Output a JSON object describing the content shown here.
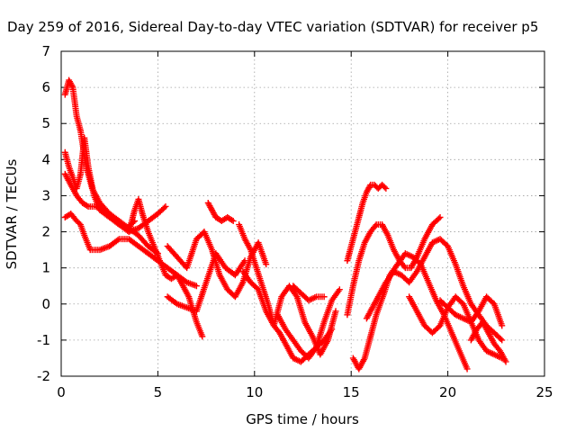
{
  "chart_data": {
    "type": "scatter",
    "title": "Day 259 of 2016, Sidereal Day-to-day VTEC variation (SDTVAR) for receiver p5",
    "xlabel": "GPS time / hours",
    "ylabel": "SDTVAR / TECUs",
    "xlim": [
      0,
      25
    ],
    "ylim": [
      -2,
      7
    ],
    "xticks": [
      0,
      5,
      10,
      15,
      20,
      25
    ],
    "yticks": [
      -2,
      -1,
      0,
      1,
      2,
      3,
      4,
      5,
      6,
      7
    ],
    "xtick_labels": [
      "0",
      "5",
      "10",
      "15",
      "20",
      "25"
    ],
    "ytick_labels": [
      "-2",
      "-1",
      "0",
      "1",
      "2",
      "3",
      "4",
      "5",
      "6",
      "7"
    ],
    "grid": true,
    "marker": "+",
    "color": "#ff0000",
    "tracks": [
      {
        "x": [
          0.2,
          0.4,
          0.6,
          0.8,
          1.0,
          1.3,
          1.6,
          2.0,
          2.5,
          3.0,
          3.5,
          4.0,
          4.5,
          5.0
        ],
        "y": [
          5.8,
          6.2,
          6.0,
          5.2,
          4.8,
          3.8,
          3.2,
          2.8,
          2.5,
          2.3,
          2.1,
          1.9,
          1.6,
          1.4
        ]
      },
      {
        "x": [
          0.2,
          0.4,
          0.6,
          0.8,
          1.0,
          1.2,
          1.4,
          1.7,
          2.0,
          2.5,
          3.0,
          3.5,
          4.0,
          4.5,
          5.0,
          5.4
        ],
        "y": [
          4.2,
          3.8,
          3.5,
          3.2,
          3.6,
          4.6,
          3.8,
          3.0,
          2.6,
          2.4,
          2.2,
          2.0,
          2.1,
          2.3,
          2.5,
          2.7
        ]
      },
      {
        "x": [
          0.2,
          0.5,
          0.8,
          1.0,
          1.2,
          1.5,
          2.0,
          2.5,
          3.0,
          3.5,
          4.0,
          4.5,
          5.0,
          5.5,
          6.0,
          6.5,
          7.0
        ],
        "y": [
          2.4,
          2.5,
          2.3,
          2.2,
          1.9,
          1.5,
          1.5,
          1.6,
          1.8,
          1.8,
          1.6,
          1.4,
          1.2,
          1.0,
          0.8,
          0.6,
          0.5
        ]
      },
      {
        "x": [
          0.2,
          0.5,
          0.8,
          1.1,
          1.4,
          1.8,
          2.2,
          2.6,
          3.0,
          3.4,
          3.8
        ],
        "y": [
          3.6,
          3.3,
          3.0,
          2.8,
          2.7,
          2.7,
          2.6,
          2.4,
          2.2,
          2.1,
          2.3
        ]
      },
      {
        "x": [
          3.5,
          3.8,
          4.0,
          4.2,
          4.5,
          4.8,
          5.1,
          5.4,
          5.7,
          6.0,
          6.3,
          6.6,
          7.0,
          7.3
        ],
        "y": [
          2.0,
          2.6,
          2.9,
          2.5,
          2.0,
          1.6,
          1.2,
          0.8,
          0.7,
          0.8,
          0.5,
          0.2,
          -0.5,
          -0.9
        ]
      },
      {
        "x": [
          5.5,
          6.0,
          6.5,
          7.0,
          7.5,
          8.0,
          8.5,
          9.0,
          9.5
        ],
        "y": [
          0.2,
          0.0,
          -0.1,
          -0.2,
          0.6,
          1.4,
          1.0,
          0.8,
          1.2
        ]
      },
      {
        "x": [
          5.5,
          6.0,
          6.5,
          7.0,
          7.4,
          7.8,
          8.2,
          8.6,
          9.0,
          9.4,
          9.8,
          10.2,
          10.6
        ],
        "y": [
          1.6,
          1.3,
          1.0,
          1.8,
          2.0,
          1.5,
          0.8,
          0.4,
          0.2,
          0.6,
          1.3,
          1.7,
          1.1
        ]
      },
      {
        "x": [
          7.6,
          7.8,
          8.0,
          8.3,
          8.6,
          8.9
        ],
        "y": [
          2.8,
          2.6,
          2.4,
          2.3,
          2.4,
          2.3
        ]
      },
      {
        "x": [
          9.2,
          9.5,
          9.8,
          10.1,
          10.4,
          10.7,
          11.0,
          11.3,
          11.6,
          12.0,
          12.4,
          12.8,
          13.2,
          13.6,
          14.0
        ],
        "y": [
          2.2,
          1.8,
          1.5,
          1.0,
          0.5,
          0.0,
          -0.6,
          -0.8,
          -1.1,
          -1.5,
          -1.6,
          -1.4,
          -1.2,
          -1.0,
          -0.7
        ]
      },
      {
        "x": [
          9.4,
          9.8,
          10.2,
          10.6,
          11.0,
          11.4,
          11.8,
          12.2,
          12.6,
          13.0,
          13.4,
          13.8,
          14.2
        ],
        "y": [
          0.9,
          0.6,
          0.4,
          -0.2,
          -0.6,
          0.2,
          0.5,
          0.2,
          -0.5,
          -0.9,
          -1.4,
          -1.0,
          -0.2
        ]
      },
      {
        "x": [
          11.2,
          11.6,
          12.0,
          12.4,
          12.8,
          13.2,
          13.6,
          14.0,
          14.4
        ],
        "y": [
          -0.3,
          -0.7,
          -1.0,
          -1.3,
          -1.5,
          -1.2,
          -0.5,
          0.1,
          0.4
        ]
      },
      {
        "x": [
          12.0,
          12.4,
          12.8,
          13.2,
          13.6
        ],
        "y": [
          0.5,
          0.3,
          0.1,
          0.2,
          0.2
        ]
      },
      {
        "x": [
          14.8,
          15.0,
          15.2,
          15.4,
          15.6,
          15.8,
          16.0,
          16.2,
          16.4,
          16.6,
          16.8
        ],
        "y": [
          1.2,
          1.6,
          2.0,
          2.4,
          2.8,
          3.1,
          3.3,
          3.3,
          3.2,
          3.3,
          3.2
        ]
      },
      {
        "x": [
          14.8,
          15.1,
          15.4,
          15.7,
          16.0,
          16.3,
          16.6,
          16.9,
          17.2,
          17.5,
          17.8,
          18.1,
          18.4,
          18.8,
          19.2,
          19.6
        ],
        "y": [
          -0.3,
          0.5,
          1.2,
          1.7,
          2.0,
          2.2,
          2.2,
          1.9,
          1.5,
          1.2,
          1.0,
          1.0,
          1.3,
          1.8,
          2.2,
          2.4
        ]
      },
      {
        "x": [
          15.1,
          15.4,
          15.7,
          16.0,
          16.3,
          16.7,
          17.0,
          17.4,
          17.8,
          18.2,
          18.6,
          19.0,
          19.4,
          19.8,
          20.2,
          20.6,
          21.0
        ],
        "y": [
          -1.5,
          -1.8,
          -1.5,
          -0.9,
          -0.3,
          0.3,
          0.8,
          1.1,
          1.4,
          1.3,
          1.1,
          0.6,
          0.1,
          -0.3,
          -0.8,
          -1.3,
          -1.8
        ]
      },
      {
        "x": [
          15.8,
          16.1,
          16.4,
          16.8,
          17.2,
          17.6,
          18.0,
          18.4,
          18.8,
          19.2,
          19.6,
          20.0,
          20.4,
          20.8,
          21.2,
          21.6,
          22.0,
          22.4,
          22.8
        ],
        "y": [
          -0.4,
          -0.1,
          0.2,
          0.6,
          0.9,
          0.8,
          0.6,
          0.9,
          1.3,
          1.7,
          1.8,
          1.6,
          1.1,
          0.5,
          0.0,
          -0.3,
          -0.6,
          -0.8,
          -1.0
        ]
      },
      {
        "x": [
          18.0,
          18.4,
          18.8,
          19.2,
          19.6,
          20.0,
          20.4,
          20.8,
          21.2,
          21.6,
          22.0,
          22.4,
          22.8
        ],
        "y": [
          0.2,
          -0.2,
          -0.6,
          -0.8,
          -0.6,
          -0.1,
          0.2,
          0.0,
          -0.5,
          -1.0,
          -1.3,
          -1.4,
          -1.5
        ]
      },
      {
        "x": [
          19.6,
          20.0,
          20.4,
          20.8,
          21.2,
          21.6,
          22.0,
          22.4,
          22.8
        ],
        "y": [
          0.1,
          -0.1,
          -0.3,
          -0.4,
          -0.5,
          -0.2,
          0.2,
          0.0,
          -0.6
        ]
      },
      {
        "x": [
          21.2,
          21.5,
          21.8,
          22.1,
          22.4,
          22.7,
          23.0
        ],
        "y": [
          -1.0,
          -0.7,
          -0.5,
          -0.8,
          -1.1,
          -1.3,
          -1.6
        ]
      }
    ]
  }
}
